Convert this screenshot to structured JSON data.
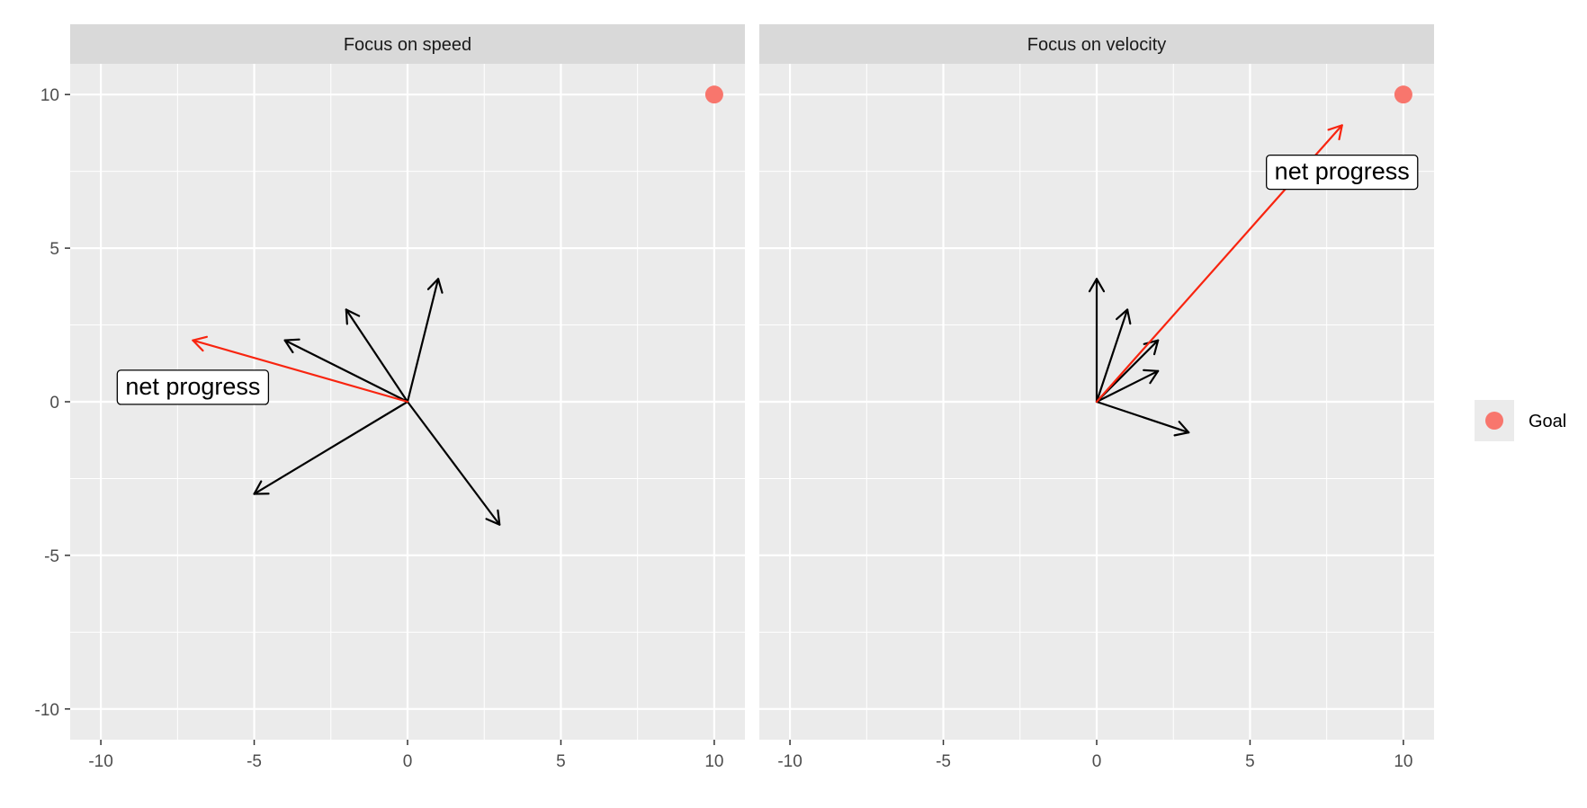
{
  "chart_data": {
    "type": "vector-facets",
    "x_range": [
      -11,
      11
    ],
    "y_range": [
      -11,
      11
    ],
    "x_ticks": [
      -10,
      -5,
      0,
      5,
      10
    ],
    "x_tick_labels": [
      "-10",
      "-5",
      "0",
      "5",
      "10"
    ],
    "y_ticks": [
      -10,
      -5,
      0,
      5,
      10
    ],
    "y_tick_labels": [
      "-10",
      "-5",
      "0",
      "5",
      "10"
    ],
    "grid": true,
    "colors": {
      "panel_bg": "#ebebeb",
      "strip_bg": "#d9d9d9",
      "grid": "#ffffff",
      "step_arrow": "#000000",
      "net_arrow": "#f8240f",
      "goal": "#f8766d"
    },
    "legend": {
      "position": "right",
      "label": "Goal"
    },
    "goal": {
      "x": 10,
      "y": 10
    },
    "facets": [
      {
        "title": "Focus on speed",
        "origin": {
          "x": 0,
          "y": 0
        },
        "steps": [
          {
            "dx": 1,
            "dy": 4
          },
          {
            "dx": -2,
            "dy": 3
          },
          {
            "dx": -4,
            "dy": 2
          },
          {
            "dx": -5,
            "dy": -3
          },
          {
            "dx": 3,
            "dy": -4
          }
        ],
        "net_progress": {
          "dx": -7,
          "dy": 2
        },
        "label": {
          "text": "net progress",
          "x": -7,
          "y": 0.5
        }
      },
      {
        "title": "Focus on velocity",
        "origin": {
          "x": 0,
          "y": 0
        },
        "steps": [
          {
            "dx": 0,
            "dy": 4
          },
          {
            "dx": 1,
            "dy": 3
          },
          {
            "dx": 2,
            "dy": 2
          },
          {
            "dx": 2,
            "dy": 1
          },
          {
            "dx": 3,
            "dy": -1
          }
        ],
        "net_progress": {
          "dx": 8,
          "dy": 9
        },
        "label": {
          "text": "net progress",
          "x": 8,
          "y": 7.5
        }
      }
    ]
  }
}
